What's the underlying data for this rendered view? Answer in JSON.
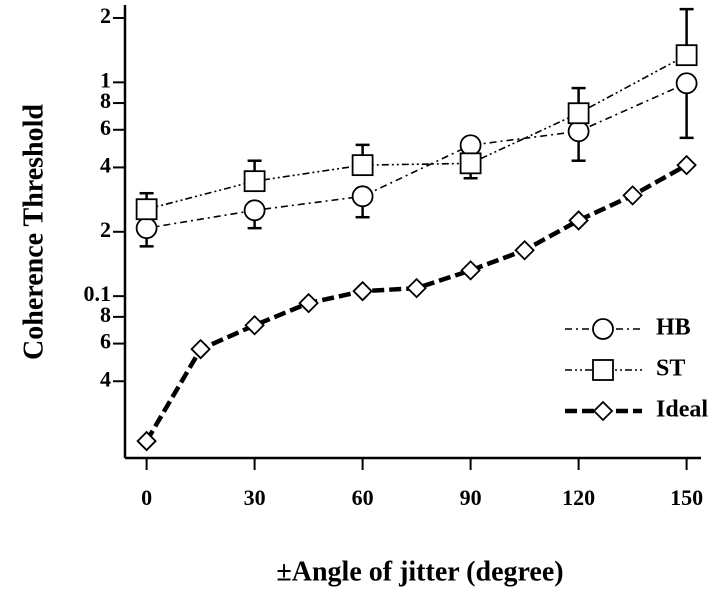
{
  "chart_data": {
    "type": "line",
    "x_label": "±Angle of jitter (degree)",
    "y_label": "Coherence Threshold",
    "log_y": true,
    "xlim": [
      -6,
      154
    ],
    "ylim": [
      0.0175,
      2.3
    ],
    "xticks": [
      0,
      30,
      60,
      90,
      120,
      150
    ],
    "yticks": [
      {
        "value": 0.04,
        "label": "4"
      },
      {
        "value": 0.06,
        "label": "6"
      },
      {
        "value": 0.08,
        "label": "8"
      },
      0.1,
      {
        "value": 0.2,
        "label": "2"
      },
      {
        "value": 0.4,
        "label": "4"
      },
      {
        "value": 0.6,
        "label": "6"
      },
      {
        "value": 0.8,
        "label": "8"
      },
      1,
      2
    ],
    "legend": "lower right",
    "series": [
      {
        "name": "HB",
        "color": "#000",
        "marker": "circle",
        "style": "dashdot",
        "x": [
          0,
          30,
          60,
          90,
          120,
          150
        ],
        "values": [
          0.208,
          0.252,
          0.293,
          0.508,
          0.59,
          0.99
        ],
        "err_low": [
          0.171,
          0.208,
          0.234,
          null,
          0.43,
          0.55
        ],
        "err_high": [
          null,
          null,
          null,
          null,
          null,
          null
        ]
      },
      {
        "name": "ST",
        "color": "#000",
        "marker": "square",
        "style": "dashdotdot",
        "x": [
          0,
          30,
          60,
          90,
          120,
          150
        ],
        "values": [
          0.255,
          0.345,
          0.41,
          0.418,
          0.717,
          1.34
        ],
        "err_low": [
          null,
          null,
          null,
          0.356,
          null,
          null
        ],
        "err_high": [
          0.303,
          0.43,
          0.51,
          null,
          0.94,
          2.2
        ]
      },
      {
        "name": "Ideal",
        "color": "#000",
        "marker": "diamond",
        "style": "dashed",
        "x": [
          0,
          15,
          30,
          45,
          60,
          75,
          90,
          105,
          120,
          135,
          150
        ],
        "values": [
          0.021,
          0.0565,
          0.0731,
          0.0928,
          0.1055,
          0.109,
          0.132,
          0.164,
          0.226,
          0.296,
          0.41
        ],
        "err_low": [
          null,
          null,
          null,
          null,
          null,
          null,
          null,
          null,
          null,
          null,
          null
        ],
        "err_high": [
          null,
          null,
          null,
          null,
          null,
          null,
          null,
          null,
          null,
          null,
          null
        ]
      }
    ]
  }
}
